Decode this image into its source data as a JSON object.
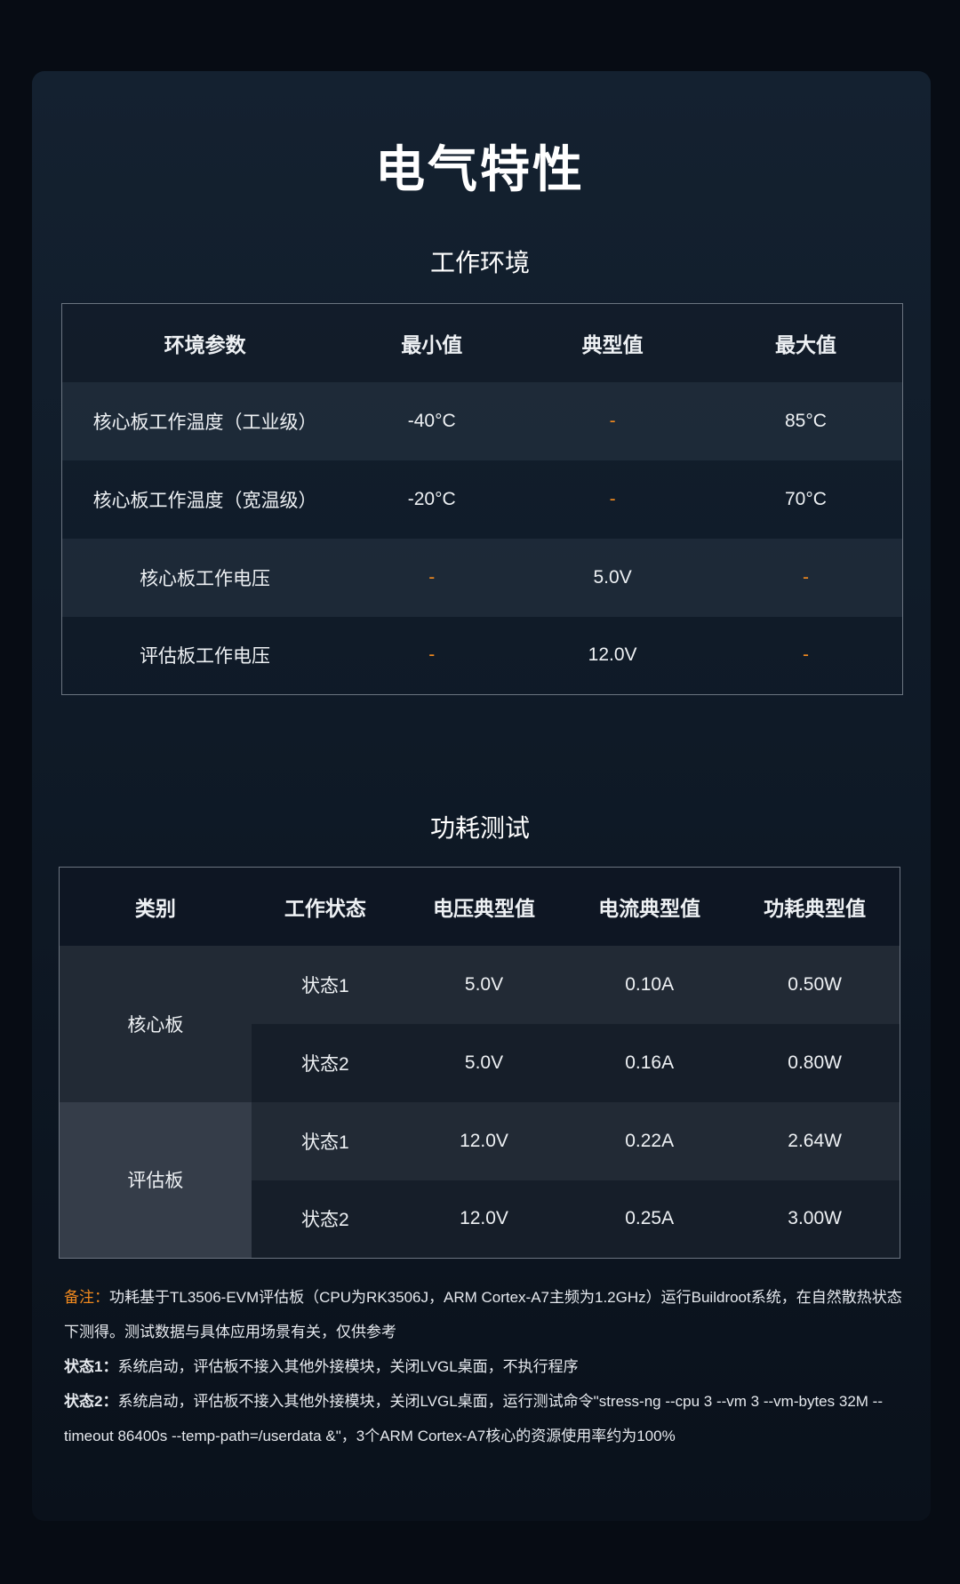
{
  "title": "电气特性",
  "env": {
    "subtitle": "工作环境",
    "headers": [
      "环境参数",
      "最小值",
      "典型值",
      "最大值"
    ],
    "rows": [
      [
        "核心板工作温度（工业级）",
        "-40°C",
        "-",
        "85°C"
      ],
      [
        "核心板工作温度（宽温级）",
        "-20°C",
        "-",
        "70°C"
      ],
      [
        "核心板工作电压",
        "-",
        "5.0V",
        "-"
      ],
      [
        "评估板工作电压",
        "-",
        "12.0V",
        "-"
      ]
    ]
  },
  "power": {
    "subtitle": "功耗测试",
    "headers": [
      "类别",
      "工作状态",
      "电压典型值",
      "电流典型值",
      "功耗典型值"
    ],
    "groups": [
      {
        "category": "核心板",
        "rows": [
          [
            "状态1",
            "5.0V",
            "0.10A",
            "0.50W"
          ],
          [
            "状态2",
            "5.0V",
            "0.16A",
            "0.80W"
          ]
        ]
      },
      {
        "category": "评估板",
        "rows": [
          [
            "状态1",
            "12.0V",
            "0.22A",
            "2.64W"
          ],
          [
            "状态2",
            "12.0V",
            "0.25A",
            "3.00W"
          ]
        ]
      }
    ]
  },
  "notes": {
    "note_label": "备注：",
    "note_text": "功耗基于TL3506-EVM评估板（CPU为RK3506J，ARM Cortex-A7主频为1.2GHz）运行Buildroot系统，在自然散热状态下测得。测试数据与具体应用场景有关，仅供参考",
    "s1_label": "状态1：",
    "s1_text": "系统启动，评估板不接入其他外接模块，关闭LVGL桌面，不执行程序",
    "s2_label": "状态2：",
    "s2_text": "系统启动，评估板不接入其他外接模块，关闭LVGL桌面，运行测试命令\"stress-ng --cpu 3 --vm 3 --vm-bytes 32M --timeout 86400s --temp-path=/userdata &\"，3个ARM Cortex-A7核心的资源使用率约为100%"
  },
  "colors": {
    "accent": "#f0891e",
    "background": "#0f1a27"
  }
}
